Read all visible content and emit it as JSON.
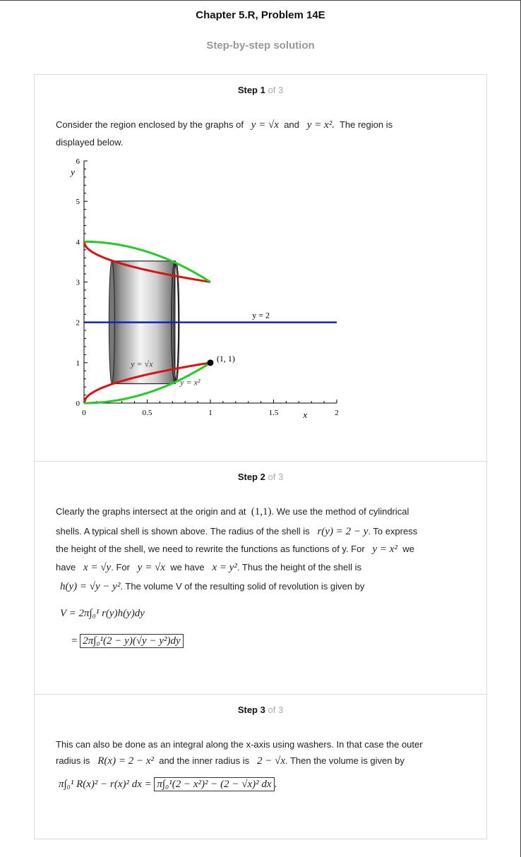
{
  "header": {
    "title": "Chapter 5.R, Problem 14E",
    "subtitle": "Step-by-step solution"
  },
  "steps": [
    {
      "word": "Step",
      "num": "1",
      "of": "of 3"
    },
    {
      "word": "Step",
      "num": "2",
      "of": "of 3"
    },
    {
      "word": "Step",
      "num": "3",
      "of": "of 3"
    }
  ],
  "step1": {
    "t1": "Consider the region enclosed by the graphs of",
    "eq1": "y = √x",
    "t2": "and",
    "eq2": "y = x².",
    "t3": "The region is",
    "t4": "displayed below."
  },
  "chart_data": {
    "type": "line",
    "xlabel": "x",
    "ylabel": "y",
    "xlim": [
      0,
      2
    ],
    "ylim": [
      0,
      6
    ],
    "xticks": [
      "0",
      "0.5",
      "1",
      "1.5",
      "2"
    ],
    "yticks": [
      "0",
      "1",
      "2",
      "3",
      "4",
      "5",
      "6"
    ],
    "annotations": [
      "y = 2",
      "(1, 1)",
      "y = √x",
      "y = x²"
    ],
    "series": [
      {
        "values": "y = √x, 0 ≤ x ≤ 1",
        "color": "#dd1111"
      },
      {
        "values": "y = x², 0 ≤ x ≤ 1",
        "color": "#22cc22"
      },
      {
        "values": "y = 2",
        "color": "#1122bb"
      }
    ],
    "point": [
      1,
      1
    ]
  },
  "step2": {
    "l1a": "Clearly the graphs intersect at the origin and at",
    "l1m": "(1,1)",
    "l1b": ". We use the method of cylindrical",
    "l2": "shells. A typical shell is shown above. The radius of the shell is",
    "l2m": "r(y) = 2 − y",
    "l2b": ". To express",
    "l3": "the height of the shell, we need to rewrite the functions as functions of y. For",
    "l3m": "y = x²",
    "l3b": "we",
    "l4a": "have",
    "l4m1": "x = √y",
    "l4b": ". For",
    "l4m2": "y = √x",
    "l4c": "we have",
    "l4m3": "x = y²",
    "l4d": ". Thus the height of the shell is",
    "l5m": "h(y) = √y − y²",
    "l5b": ". The volume V of the resulting solid of revolution is given by",
    "eqA": "V = 2π∫₀¹ r(y)h(y)dy",
    "eqB": "2π∫₀¹(2 − y)(√y − y²)dy"
  },
  "step3": {
    "l1": "This can also be done as an integral along the x-axis using washers. In that case the outer",
    "l2a": "radius is",
    "l2m1": "R(x) = 2 − x²",
    "l2b": "and the inner radius is",
    "l2m2": "2 − √x",
    "l2c": ". Then the volume is given by",
    "eqA": "π∫₀¹ R(x)² − r(x)² dx =",
    "eqB": "π∫₀¹(2 − x²)² − (2 − √x)² dx"
  }
}
